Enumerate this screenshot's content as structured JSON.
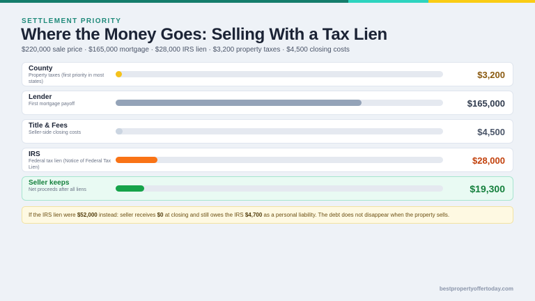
{
  "colors": {
    "top_bar": [
      "#147d6c",
      "#2dd4bf",
      "#facc15"
    ],
    "county": "#f5c21b",
    "lender": "#94a3b8",
    "title_fees": "#cbd5e1",
    "irs": "#f97316",
    "seller": "#16a34a",
    "county_text": "#8a5a10",
    "lender_text": "#2f3a4d",
    "title_fees_text": "#4a5568",
    "irs_text": "#c2410c",
    "seller_text": "#15803d"
  },
  "header": {
    "eyebrow": "SETTLEMENT PRIORITY",
    "title": "Where the Money Goes: Selling With a Tax Lien",
    "subtitle": "$220,000 sale price · $165,000 mortgage · $28,000 IRS lien · $3,200 property taxes · $4,500 closing costs"
  },
  "chart_data": {
    "type": "bar",
    "orientation": "horizontal",
    "scale_max": 220000,
    "categories": [
      "County",
      "Lender",
      "Title & Fees",
      "IRS",
      "Seller keeps"
    ],
    "descriptions": [
      "Property taxes (first priority in most states)",
      "First mortgage payoff",
      "Seller-side closing costs",
      "Federal tax lien (Notice of Federal Tax Lien)",
      "Net proceeds after all liens"
    ],
    "values": [
      3200,
      165000,
      4500,
      28000,
      19300
    ],
    "value_labels": [
      "$3,200",
      "$165,000",
      "$4,500",
      "$28,000",
      "$19,300"
    ],
    "colors": [
      "#f5c21b",
      "#94a3b8",
      "#cbd5e1",
      "#f97316",
      "#16a34a"
    ],
    "text_colors": [
      "#8a5a10",
      "#2f3a4d",
      "#4a5568",
      "#c2410c",
      "#15803d"
    ],
    "highlight_index": 4
  },
  "note": {
    "part1": "If the IRS lien were ",
    "lien_amount": "$52,000",
    "part2": " instead: seller receives ",
    "proceeds": "$0",
    "part3": " at closing and still owes the IRS ",
    "owed": "$4,700",
    "part4": " as a personal liability. The debt does not disappear when the property sells."
  },
  "footer": {
    "site": "bestpropertyoffertoday.com"
  }
}
